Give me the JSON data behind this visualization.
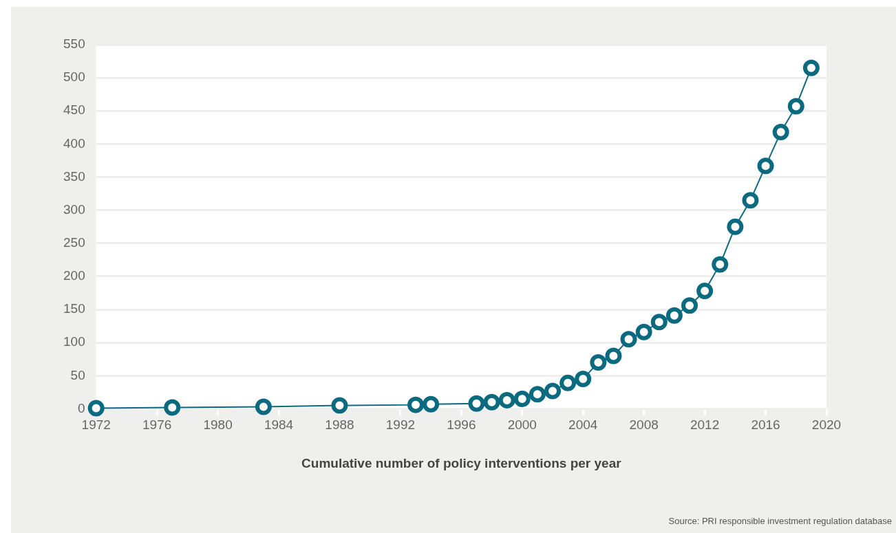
{
  "chart_data": {
    "type": "line",
    "xlabel": "Cumulative number of policy interventions per year",
    "annotations": [
      "Source: PRI responsible investment regulation database"
    ],
    "x": [
      1972,
      1977,
      1983,
      1988,
      1993,
      1994,
      1997,
      1998,
      1999,
      2000,
      2001,
      2002,
      2003,
      2004,
      2005,
      2006,
      2007,
      2008,
      2009,
      2010,
      2011,
      2012,
      2013,
      2014,
      2015,
      2016,
      2017,
      2018,
      2019
    ],
    "series": [
      {
        "color": "#0b6a80",
        "values": [
          1,
          2,
          3,
          5,
          6,
          7,
          8,
          10,
          13,
          15,
          22,
          27,
          39,
          45,
          70,
          80,
          105,
          116,
          131,
          141,
          156,
          178,
          218,
          275,
          315,
          367,
          418,
          457,
          515
        ]
      }
    ],
    "xlim": [
      1972,
      2020
    ],
    "xticks": [
      1972,
      1976,
      1980,
      1984,
      1988,
      1992,
      1996,
      2000,
      2004,
      2008,
      2012,
      2016,
      2020
    ],
    "ylim": [
      0,
      550
    ],
    "yticks": [
      0,
      50,
      100,
      150,
      200,
      250,
      300,
      350,
      400,
      450,
      500,
      550
    ],
    "grid": "y",
    "legend": false,
    "marker": "circle",
    "line_style": "solid"
  }
}
